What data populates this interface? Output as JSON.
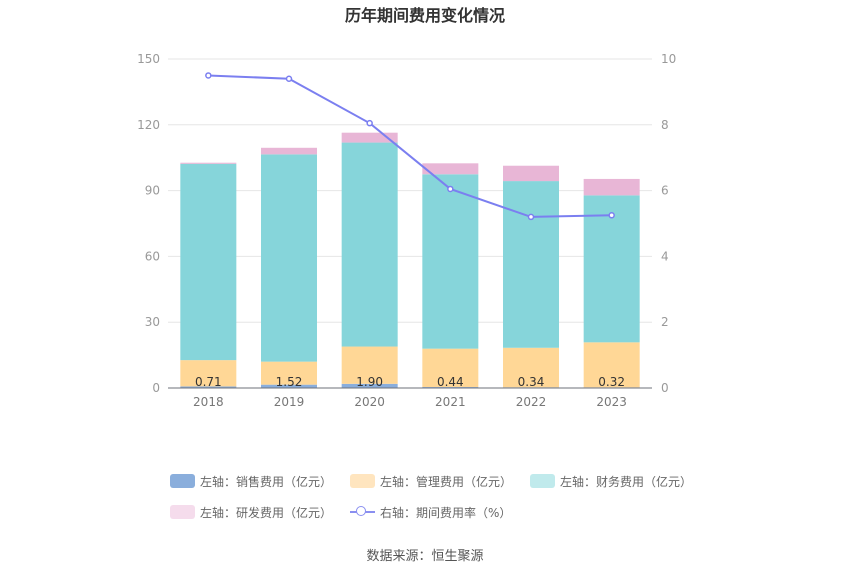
{
  "title": "历年期间费用变化情况",
  "source": "数据来源：恒生聚源",
  "chart_data": {
    "type": "bar",
    "stacked": true,
    "categories": [
      "2018",
      "2019",
      "2020",
      "2021",
      "2022",
      "2023"
    ],
    "left_axis": {
      "min": 0,
      "max": 150,
      "ticks": [
        "0",
        "30",
        "60",
        "90",
        "120",
        "150"
      ]
    },
    "right_axis": {
      "min": 0,
      "max": 10,
      "ticks": [
        "0",
        "2",
        "4",
        "6",
        "8",
        "10"
      ]
    },
    "series": [
      {
        "name": "左轴：销售费用（亿元）",
        "axis": "left",
        "color": "#8aaedc",
        "values": [
          0.71,
          1.52,
          1.9,
          0.44,
          0.34,
          0.32
        ]
      },
      {
        "name": "左轴：管理费用（亿元）",
        "axis": "left",
        "color": "#ffd796",
        "values": [
          12.0,
          10.5,
          17.0,
          17.5,
          18.0,
          20.5
        ]
      },
      {
        "name": "左轴：财务费用（亿元）",
        "axis": "left",
        "color": "#86d5da",
        "values": [
          89.5,
          94.5,
          93.0,
          79.5,
          76.0,
          67.0
        ]
      },
      {
        "name": "左轴：研发费用（亿元）",
        "axis": "left",
        "color": "#e8b6d6",
        "values": [
          0.5,
          3.0,
          4.5,
          5.0,
          7.0,
          7.5
        ]
      },
      {
        "name": "右轴：期间费用率（%）",
        "axis": "right",
        "type": "line",
        "color": "#7b7ff0",
        "values": [
          9.5,
          9.4,
          8.05,
          6.05,
          5.2,
          5.25
        ]
      }
    ],
    "data_labels": [
      "0.71",
      "1.52",
      "1.90",
      "0.44",
      "0.34",
      "0.32"
    ],
    "legend": [
      {
        "label": "左轴：销售费用（亿元）",
        "color": "#8aaedc"
      },
      {
        "label": "左轴：管理费用（亿元）",
        "color": "#ffe5bf"
      },
      {
        "label": "左轴：财务费用（亿元）",
        "color": "#c0eaec"
      },
      {
        "label": "左轴：研发费用（亿元）",
        "color": "#f5dcec"
      },
      {
        "label": "右轴：期间费用率（%）",
        "color": "#8a8ff0"
      }
    ]
  }
}
